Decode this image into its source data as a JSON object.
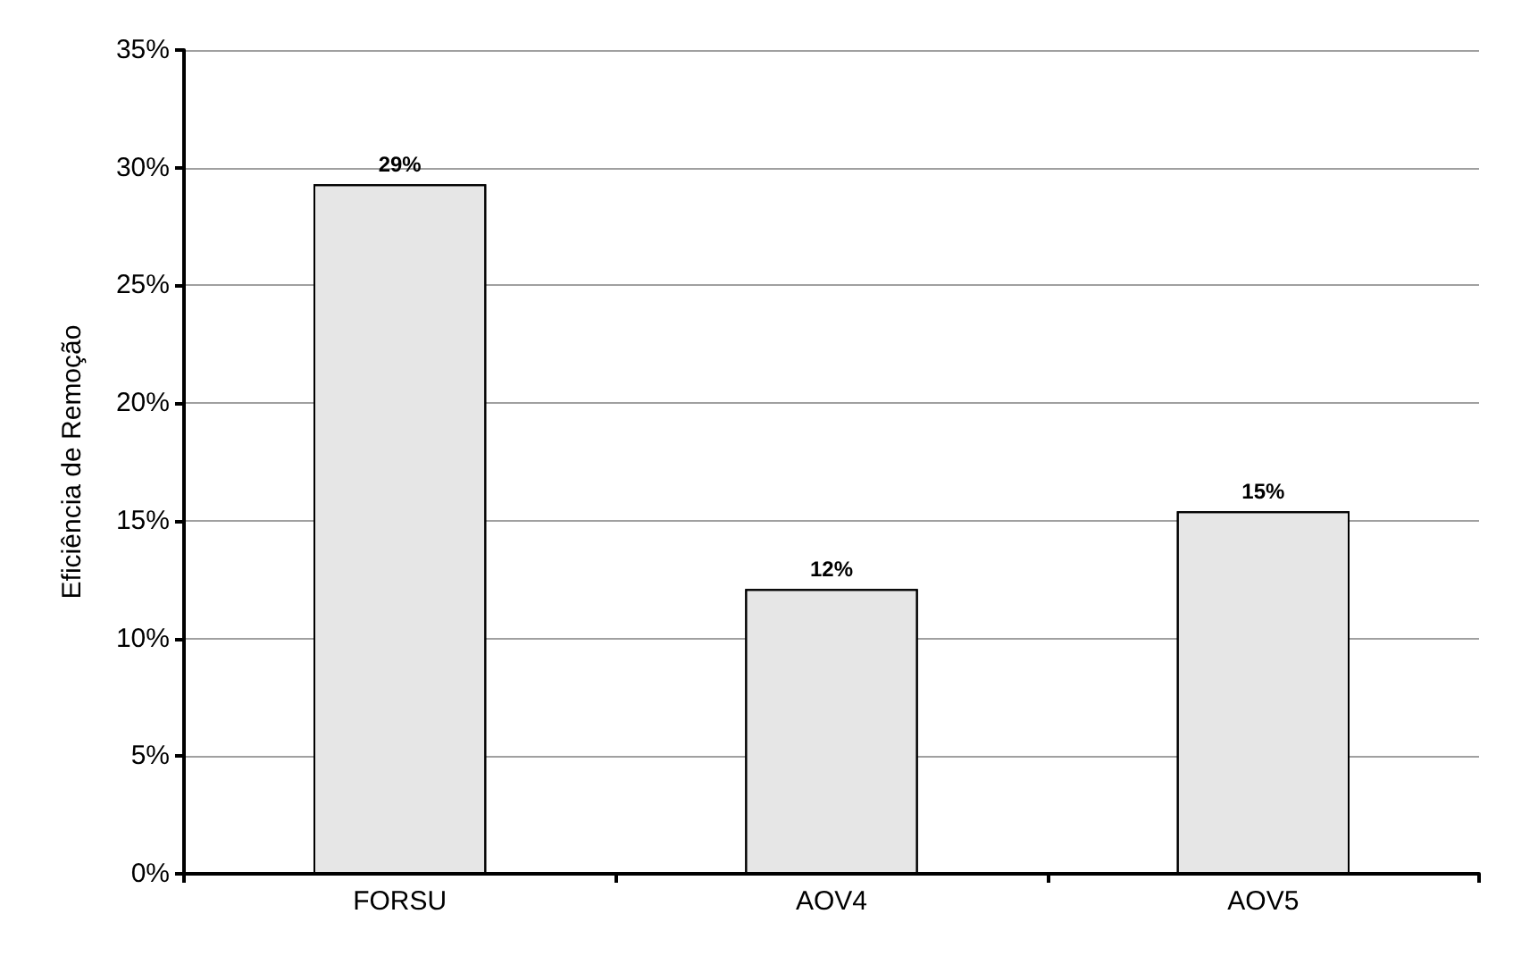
{
  "chart_data": {
    "type": "bar",
    "ylabel": "Eficiência de Remoção",
    "categories": [
      "FORSU",
      "AOV4",
      "AOV5"
    ],
    "series": [
      {
        "color": "#e6e6e6",
        "values": [
          29.3,
          12.1,
          15.4
        ],
        "value_labels": [
          "29%",
          "12%",
          "15%"
        ]
      }
    ],
    "ylim": [
      0,
      35
    ],
    "yticks": [
      {
        "value": 0,
        "label": "0%"
      },
      {
        "value": 5,
        "label": "5%"
      },
      {
        "value": 10,
        "label": "10%"
      },
      {
        "value": 15,
        "label": "15%"
      },
      {
        "value": 20,
        "label": "20%"
      },
      {
        "value": 25,
        "label": "25%"
      },
      {
        "value": 30,
        "label": "30%"
      },
      {
        "value": 35,
        "label": "35%"
      }
    ],
    "grid": "y"
  }
}
